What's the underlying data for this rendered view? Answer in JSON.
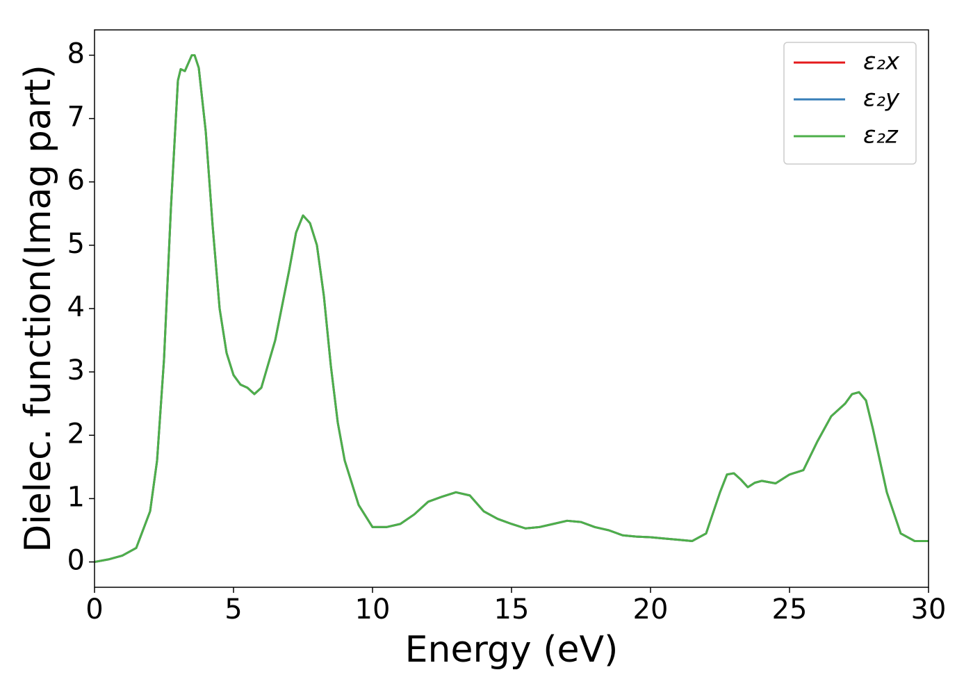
{
  "chart_data": {
    "type": "line",
    "x_label": "Energy (eV)",
    "y_label": "Dielec. function(Imag part)",
    "x": [
      0,
      0.5,
      1,
      1.5,
      2,
      2.25,
      2.5,
      2.75,
      3.0,
      3.1,
      3.25,
      3.5,
      3.6,
      3.75,
      4.0,
      4.25,
      4.5,
      4.75,
      5.0,
      5.25,
      5.5,
      5.75,
      6.0,
      6.5,
      7.0,
      7.25,
      7.5,
      7.75,
      8.0,
      8.25,
      8.5,
      8.75,
      9.0,
      9.5,
      10,
      10.5,
      11,
      11.5,
      12,
      12.5,
      13,
      13.5,
      14,
      14.5,
      15,
      15.5,
      16,
      16.5,
      17,
      17.5,
      18,
      18.5,
      19,
      19.5,
      20,
      20.5,
      21,
      21.5,
      22,
      22.5,
      22.75,
      23,
      23.25,
      23.5,
      23.75,
      24,
      24.5,
      25,
      25.5,
      26,
      26.5,
      27,
      27.25,
      27.5,
      27.75,
      28,
      28.5,
      29,
      29.5,
      30
    ],
    "series": [
      {
        "name": "ε₂x",
        "color": "#e41a1c",
        "values": [
          0.0,
          0.04,
          0.1,
          0.22,
          0.8,
          1.6,
          3.2,
          5.6,
          7.6,
          7.78,
          7.75,
          8.0,
          8.0,
          7.8,
          6.8,
          5.3,
          4.0,
          3.3,
          2.95,
          2.8,
          2.75,
          2.65,
          2.75,
          3.5,
          4.6,
          5.2,
          5.47,
          5.35,
          5.0,
          4.2,
          3.1,
          2.2,
          1.6,
          0.9,
          0.55,
          0.55,
          0.6,
          0.75,
          0.95,
          1.03,
          1.1,
          1.05,
          0.8,
          0.68,
          0.6,
          0.53,
          0.55,
          0.6,
          0.65,
          0.63,
          0.55,
          0.5,
          0.42,
          0.4,
          0.39,
          0.37,
          0.35,
          0.33,
          0.45,
          1.1,
          1.38,
          1.4,
          1.3,
          1.18,
          1.25,
          1.28,
          1.24,
          1.38,
          1.45,
          1.9,
          2.3,
          2.5,
          2.65,
          2.68,
          2.55,
          2.1,
          1.1,
          0.45,
          0.33,
          0.33
        ]
      },
      {
        "name": "ε₂y",
        "color": "#377eb8",
        "values": [
          0.0,
          0.04,
          0.1,
          0.22,
          0.8,
          1.6,
          3.2,
          5.6,
          7.6,
          7.78,
          7.75,
          8.0,
          8.0,
          7.8,
          6.8,
          5.3,
          4.0,
          3.3,
          2.95,
          2.8,
          2.75,
          2.65,
          2.75,
          3.5,
          4.6,
          5.2,
          5.47,
          5.35,
          5.0,
          4.2,
          3.1,
          2.2,
          1.6,
          0.9,
          0.55,
          0.55,
          0.6,
          0.75,
          0.95,
          1.03,
          1.1,
          1.05,
          0.8,
          0.68,
          0.6,
          0.53,
          0.55,
          0.6,
          0.65,
          0.63,
          0.55,
          0.5,
          0.42,
          0.4,
          0.39,
          0.37,
          0.35,
          0.33,
          0.45,
          1.1,
          1.38,
          1.4,
          1.3,
          1.18,
          1.25,
          1.28,
          1.24,
          1.38,
          1.45,
          1.9,
          2.3,
          2.5,
          2.65,
          2.68,
          2.55,
          2.1,
          1.1,
          0.45,
          0.33,
          0.33
        ]
      },
      {
        "name": "ε₂z",
        "color": "#4daf4a",
        "values": [
          0.0,
          0.04,
          0.1,
          0.22,
          0.8,
          1.6,
          3.2,
          5.6,
          7.6,
          7.78,
          7.75,
          8.0,
          8.0,
          7.8,
          6.8,
          5.3,
          4.0,
          3.3,
          2.95,
          2.8,
          2.75,
          2.65,
          2.75,
          3.5,
          4.6,
          5.2,
          5.47,
          5.35,
          5.0,
          4.2,
          3.1,
          2.2,
          1.6,
          0.9,
          0.55,
          0.55,
          0.6,
          0.75,
          0.95,
          1.03,
          1.1,
          1.05,
          0.8,
          0.68,
          0.6,
          0.53,
          0.55,
          0.6,
          0.65,
          0.63,
          0.55,
          0.5,
          0.42,
          0.4,
          0.39,
          0.37,
          0.35,
          0.33,
          0.45,
          1.1,
          1.38,
          1.4,
          1.3,
          1.18,
          1.25,
          1.28,
          1.24,
          1.38,
          1.45,
          1.9,
          2.3,
          2.5,
          2.65,
          2.68,
          2.55,
          2.1,
          1.1,
          0.45,
          0.33,
          0.33
        ]
      }
    ],
    "xlim": [
      0,
      30
    ],
    "xticks": [
      0,
      5,
      10,
      15,
      20,
      25,
      30
    ],
    "ylim": [
      -0.4,
      8.4
    ],
    "yticks": [
      0,
      1,
      2,
      3,
      4,
      5,
      6,
      7,
      8
    ],
    "legend": "upper-right"
  }
}
